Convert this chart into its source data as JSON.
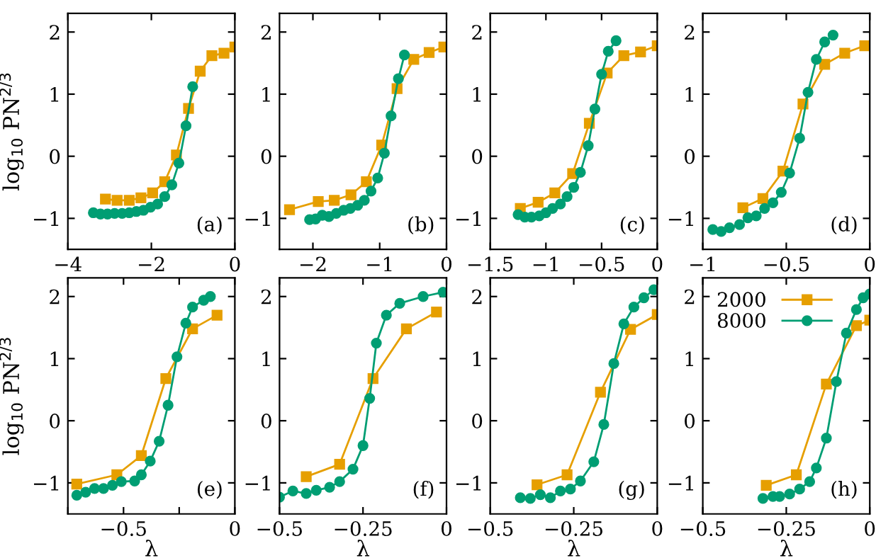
{
  "chart_data": [
    {
      "type": "line",
      "ylabel": "log$_{10}$ PN$^{2/3}$",
      "xlim": [
        -4,
        0
      ],
      "xticks": [
        -4,
        -2,
        0
      ],
      "ylim": [
        -1.5,
        2.3
      ],
      "yticks": [
        -1,
        0,
        1,
        2
      ],
      "annotations": [
        "(a)"
      ],
      "series": [
        {
          "color": "#e69f00",
          "marker": "square",
          "x": [
            -3.1,
            -2.82,
            -2.53,
            -2.25,
            -1.97,
            -1.68,
            -1.4,
            -1.11,
            -0.83,
            -0.55,
            -0.26,
            0
          ],
          "values": [
            -0.69,
            -0.71,
            -0.71,
            -0.67,
            -0.59,
            -0.41,
            0.02,
            0.77,
            1.37,
            1.62,
            1.66,
            1.76
          ]
        },
        {
          "color": "#009e73",
          "marker": "circle",
          "x": [
            -3.39,
            -3.22,
            -3.05,
            -2.88,
            -2.7,
            -2.53,
            -2.36,
            -2.19,
            -2.02,
            -1.85,
            -1.68,
            -1.51,
            -1.34,
            -1.17,
            -1.01
          ],
          "values": [
            -0.91,
            -0.93,
            -0.93,
            -0.92,
            -0.92,
            -0.91,
            -0.89,
            -0.87,
            -0.82,
            -0.77,
            -0.65,
            -0.46,
            -0.11,
            0.49,
            1.12
          ]
        }
      ]
    },
    {
      "type": "line",
      "xlim": [
        -2.5,
        0
      ],
      "xticks": [
        -2,
        -1,
        0
      ],
      "ylim": [
        -1.5,
        2.3
      ],
      "yticks": [
        -1,
        0,
        1,
        2
      ],
      "annotations": [
        "(b)"
      ],
      "series": [
        {
          "color": "#e69f00",
          "marker": "square",
          "x": [
            -2.35,
            -1.92,
            -1.68,
            -1.43,
            -1.2,
            -0.97,
            -0.74,
            -0.49,
            -0.26,
            -0.04
          ],
          "values": [
            -0.86,
            -0.73,
            -0.71,
            -0.62,
            -0.41,
            0.18,
            1.09,
            1.56,
            1.67,
            1.76
          ]
        },
        {
          "color": "#009e73",
          "marker": "circle",
          "x": [
            -2.05,
            -1.96,
            -1.86,
            -1.76,
            -1.65,
            -1.54,
            -1.44,
            -1.33,
            -1.23,
            -1.13,
            -1.03,
            -0.93,
            -0.83,
            -0.72,
            -0.63
          ],
          "values": [
            -1.02,
            -1.01,
            -0.95,
            -0.97,
            -0.92,
            -0.87,
            -0.84,
            -0.79,
            -0.71,
            -0.56,
            -0.35,
            0.05,
            0.65,
            1.25,
            1.63
          ]
        }
      ]
    },
    {
      "type": "line",
      "xlim": [
        -1.5,
        0
      ],
      "xticks": [
        -1.5,
        -1,
        -0.5,
        0
      ],
      "ylim": [
        -1.5,
        2.3
      ],
      "yticks": [
        -1,
        0,
        1,
        2
      ],
      "annotations": [
        "(c)"
      ],
      "series": [
        {
          "color": "#e69f00",
          "marker": "square",
          "x": [
            -1.23,
            -1.07,
            -0.92,
            -0.76,
            -0.61,
            -0.45,
            -0.3,
            -0.15,
            0
          ],
          "values": [
            -0.84,
            -0.74,
            -0.59,
            -0.28,
            0.53,
            1.34,
            1.62,
            1.68,
            1.78
          ]
        },
        {
          "color": "#009e73",
          "marker": "circle",
          "x": [
            -1.25,
            -1.19,
            -1.13,
            -1.06,
            -1.0,
            -0.94,
            -0.87,
            -0.81,
            -0.75,
            -0.69,
            -0.62,
            -0.56,
            -0.5,
            -0.44,
            -0.37
          ],
          "values": [
            -0.94,
            -0.98,
            -0.98,
            -0.96,
            -0.91,
            -0.84,
            -0.77,
            -0.65,
            -0.5,
            -0.26,
            0.17,
            0.76,
            1.32,
            1.69,
            1.86
          ]
        }
      ]
    },
    {
      "type": "line",
      "xlim": [
        -1,
        0
      ],
      "xticks": [
        -1,
        -0.5,
        0
      ],
      "ylim": [
        -1.5,
        2.3
      ],
      "yticks": [
        -1,
        0,
        1,
        2
      ],
      "annotations": [
        "(d)"
      ],
      "series": [
        {
          "color": "#e69f00",
          "marker": "square",
          "x": [
            -0.76,
            -0.64,
            -0.52,
            -0.4,
            -0.27,
            -0.15,
            -0.03
          ],
          "values": [
            -0.83,
            -0.68,
            -0.24,
            0.84,
            1.48,
            1.66,
            1.78
          ]
        },
        {
          "color": "#009e73",
          "marker": "circle",
          "x": [
            -0.94,
            -0.89,
            -0.84,
            -0.78,
            -0.73,
            -0.68,
            -0.63,
            -0.58,
            -0.53,
            -0.48,
            -0.42,
            -0.37,
            -0.32,
            -0.27,
            -0.22
          ],
          "values": [
            -1.18,
            -1.21,
            -1.15,
            -1.1,
            -0.99,
            -0.96,
            -0.84,
            -0.75,
            -0.58,
            -0.27,
            0.29,
            1.03,
            1.56,
            1.84,
            1.95
          ]
        }
      ]
    },
    {
      "type": "line",
      "ylabel": "log$_{10}$ PN$^{2/3}$",
      "xlabel": "λ",
      "xlim": [
        -0.75,
        0
      ],
      "xticks": [
        {
          "value": -0.75,
          "label": null
        },
        -0.5,
        {
          "value": -0.25,
          "label": null
        },
        0
      ],
      "ylim": [
        -1.5,
        2.3
      ],
      "yticks": [
        -1,
        0,
        1,
        2
      ],
      "annotations": [
        "(e)"
      ],
      "series": [
        {
          "color": "#e69f00",
          "marker": "square",
          "x": [
            -0.71,
            -0.53,
            -0.42,
            -0.31,
            -0.19,
            -0.08
          ],
          "values": [
            -1.02,
            -0.87,
            -0.56,
            0.68,
            1.48,
            1.7
          ]
        },
        {
          "color": "#009e73",
          "marker": "circle",
          "x": [
            -0.71,
            -0.67,
            -0.63,
            -0.59,
            -0.55,
            -0.51,
            -0.45,
            -0.42,
            -0.38,
            -0.34,
            -0.3,
            -0.26,
            -0.22,
            -0.19,
            -0.14,
            -0.11
          ],
          "values": [
            -1.2,
            -1.15,
            -1.09,
            -1.09,
            -1.04,
            -0.98,
            -0.97,
            -0.87,
            -0.65,
            -0.33,
            0.25,
            1.03,
            1.57,
            1.83,
            1.94,
            2.0
          ]
        }
      ]
    },
    {
      "type": "line",
      "xlabel": "λ",
      "xlim": [
        -0.5,
        0
      ],
      "xticks": [
        -0.5,
        -0.25,
        0
      ],
      "ylim": [
        -1.5,
        2.3
      ],
      "yticks": [
        -1,
        0,
        1,
        2
      ],
      "annotations": [
        "(f)"
      ],
      "series": [
        {
          "color": "#e69f00",
          "marker": "square",
          "x": [
            -0.42,
            -0.32,
            -0.22,
            -0.12,
            -0.03
          ],
          "values": [
            -0.9,
            -0.7,
            0.68,
            1.48,
            1.75
          ]
        },
        {
          "color": "#009e73",
          "marker": "circle",
          "x": [
            -0.5,
            -0.46,
            -0.42,
            -0.39,
            -0.35,
            -0.32,
            -0.28,
            -0.25,
            -0.23,
            -0.21,
            -0.18,
            -0.14,
            -0.07,
            -0.01
          ],
          "values": [
            -1.23,
            -1.13,
            -1.17,
            -1.12,
            -1.07,
            -0.98,
            -0.78,
            -0.4,
            0.36,
            1.25,
            1.7,
            1.89,
            2.0,
            2.07
          ]
        }
      ]
    },
    {
      "type": "line",
      "xlabel": "λ",
      "xlim": [
        -0.5,
        0
      ],
      "xticks": [
        -0.5,
        -0.25,
        0
      ],
      "ylim": [
        -1.5,
        2.3
      ],
      "yticks": [
        -1,
        0,
        1,
        2
      ],
      "annotations": [
        "(g)"
      ],
      "series": [
        {
          "color": "#e69f00",
          "marker": "square",
          "x": [
            -0.36,
            -0.27,
            -0.17,
            -0.08,
            0
          ],
          "values": [
            -1.03,
            -0.87,
            0.46,
            1.47,
            1.71
          ]
        },
        {
          "color": "#009e73",
          "marker": "circle",
          "x": [
            -0.41,
            -0.38,
            -0.35,
            -0.32,
            -0.29,
            -0.26,
            -0.23,
            -0.19,
            -0.16,
            -0.13,
            -0.1,
            -0.07,
            -0.04,
            -0.01
          ],
          "values": [
            -1.24,
            -1.25,
            -1.19,
            -1.24,
            -1.13,
            -1.1,
            -0.97,
            -0.66,
            -0.06,
            0.92,
            1.56,
            1.83,
            1.98,
            2.11
          ]
        }
      ]
    },
    {
      "type": "line",
      "xlabel": "λ",
      "xlim": [
        -0.5,
        0
      ],
      "xticks": [
        -0.5,
        -0.25,
        0
      ],
      "ylim": [
        -1.5,
        2.3
      ],
      "yticks": [
        -1,
        0,
        1,
        2
      ],
      "annotations": [
        "(h)"
      ],
      "legend": "top left",
      "series": [
        {
          "name": "2000",
          "color": "#e69f00",
          "marker": "square",
          "x": [
            -0.31,
            -0.22,
            -0.13,
            -0.04,
            0
          ],
          "values": [
            -1.04,
            -0.87,
            0.59,
            1.53,
            1.62
          ]
        },
        {
          "name": "8000",
          "color": "#009e73",
          "marker": "circle",
          "x": [
            -0.32,
            -0.29,
            -0.27,
            -0.24,
            -0.21,
            -0.18,
            -0.16,
            -0.13,
            -0.1,
            -0.07,
            -0.04,
            -0.02,
            0
          ],
          "values": [
            -1.25,
            -1.22,
            -1.22,
            -1.18,
            -1.1,
            -0.98,
            -0.76,
            -0.28,
            0.63,
            1.41,
            1.79,
            1.98,
            2.04
          ]
        }
      ]
    }
  ]
}
